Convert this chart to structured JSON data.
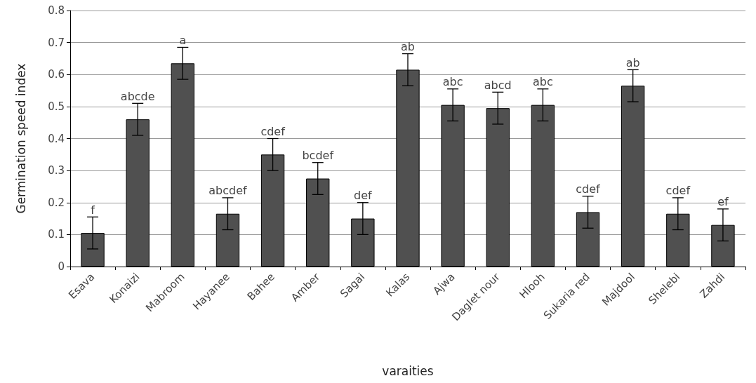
{
  "chart_data": {
    "type": "bar",
    "xlabel": "varaities",
    "ylabel": "Germination speed index",
    "categories": [
      "Esava",
      "Konaizi",
      "Mabroom",
      "Hayanee",
      "Bahee",
      "Amber",
      "Sagai",
      "Kalas",
      "Ajwa",
      "Daglet nour",
      "Hlooh",
      "Sukaria red",
      "Majdool",
      "Shelebi",
      "Zahdi"
    ],
    "values": [
      0.105,
      0.46,
      0.635,
      0.165,
      0.35,
      0.275,
      0.15,
      0.615,
      0.505,
      0.495,
      0.505,
      0.17,
      0.565,
      0.165,
      0.13
    ],
    "errors": [
      0.05,
      0.05,
      0.05,
      0.05,
      0.05,
      0.05,
      0.05,
      0.05,
      0.05,
      0.05,
      0.05,
      0.05,
      0.05,
      0.05,
      0.05
    ],
    "color": "#505050",
    "ylim": [
      0,
      0.8
    ],
    "yticks": [
      0,
      0.1,
      0.2,
      0.3,
      0.4,
      0.5,
      0.6,
      0.7,
      0.8
    ],
    "grid": "y",
    "annotations": [
      {
        "text": "f",
        "x": "Esava",
        "y": 0.155
      },
      {
        "text": "abcde",
        "x": "Konaizi",
        "y": 0.51
      },
      {
        "text": "a",
        "x": "Mabroom",
        "y": 0.685
      },
      {
        "text": "abcdef",
        "x": "Hayanee",
        "y": 0.215
      },
      {
        "text": "cdef",
        "x": "Bahee",
        "y": 0.4
      },
      {
        "text": "bcdef",
        "x": "Amber",
        "y": 0.325
      },
      {
        "text": "def",
        "x": "Sagai",
        "y": 0.2
      },
      {
        "text": "ab",
        "x": "Kalas",
        "y": 0.665
      },
      {
        "text": "abc",
        "x": "Ajwa",
        "y": 0.555
      },
      {
        "text": "abcd",
        "x": "Daglet nour",
        "y": 0.545
      },
      {
        "text": "abc",
        "x": "Hlooh",
        "y": 0.555
      },
      {
        "text": "cdef",
        "x": "Sukaria red",
        "y": 0.22
      },
      {
        "text": "ab",
        "x": "Majdool",
        "y": 0.615
      },
      {
        "text": "cdef",
        "x": "Shelebi",
        "y": 0.215
      },
      {
        "text": "ef",
        "x": "Zahdi",
        "y": 0.18
      }
    ]
  }
}
